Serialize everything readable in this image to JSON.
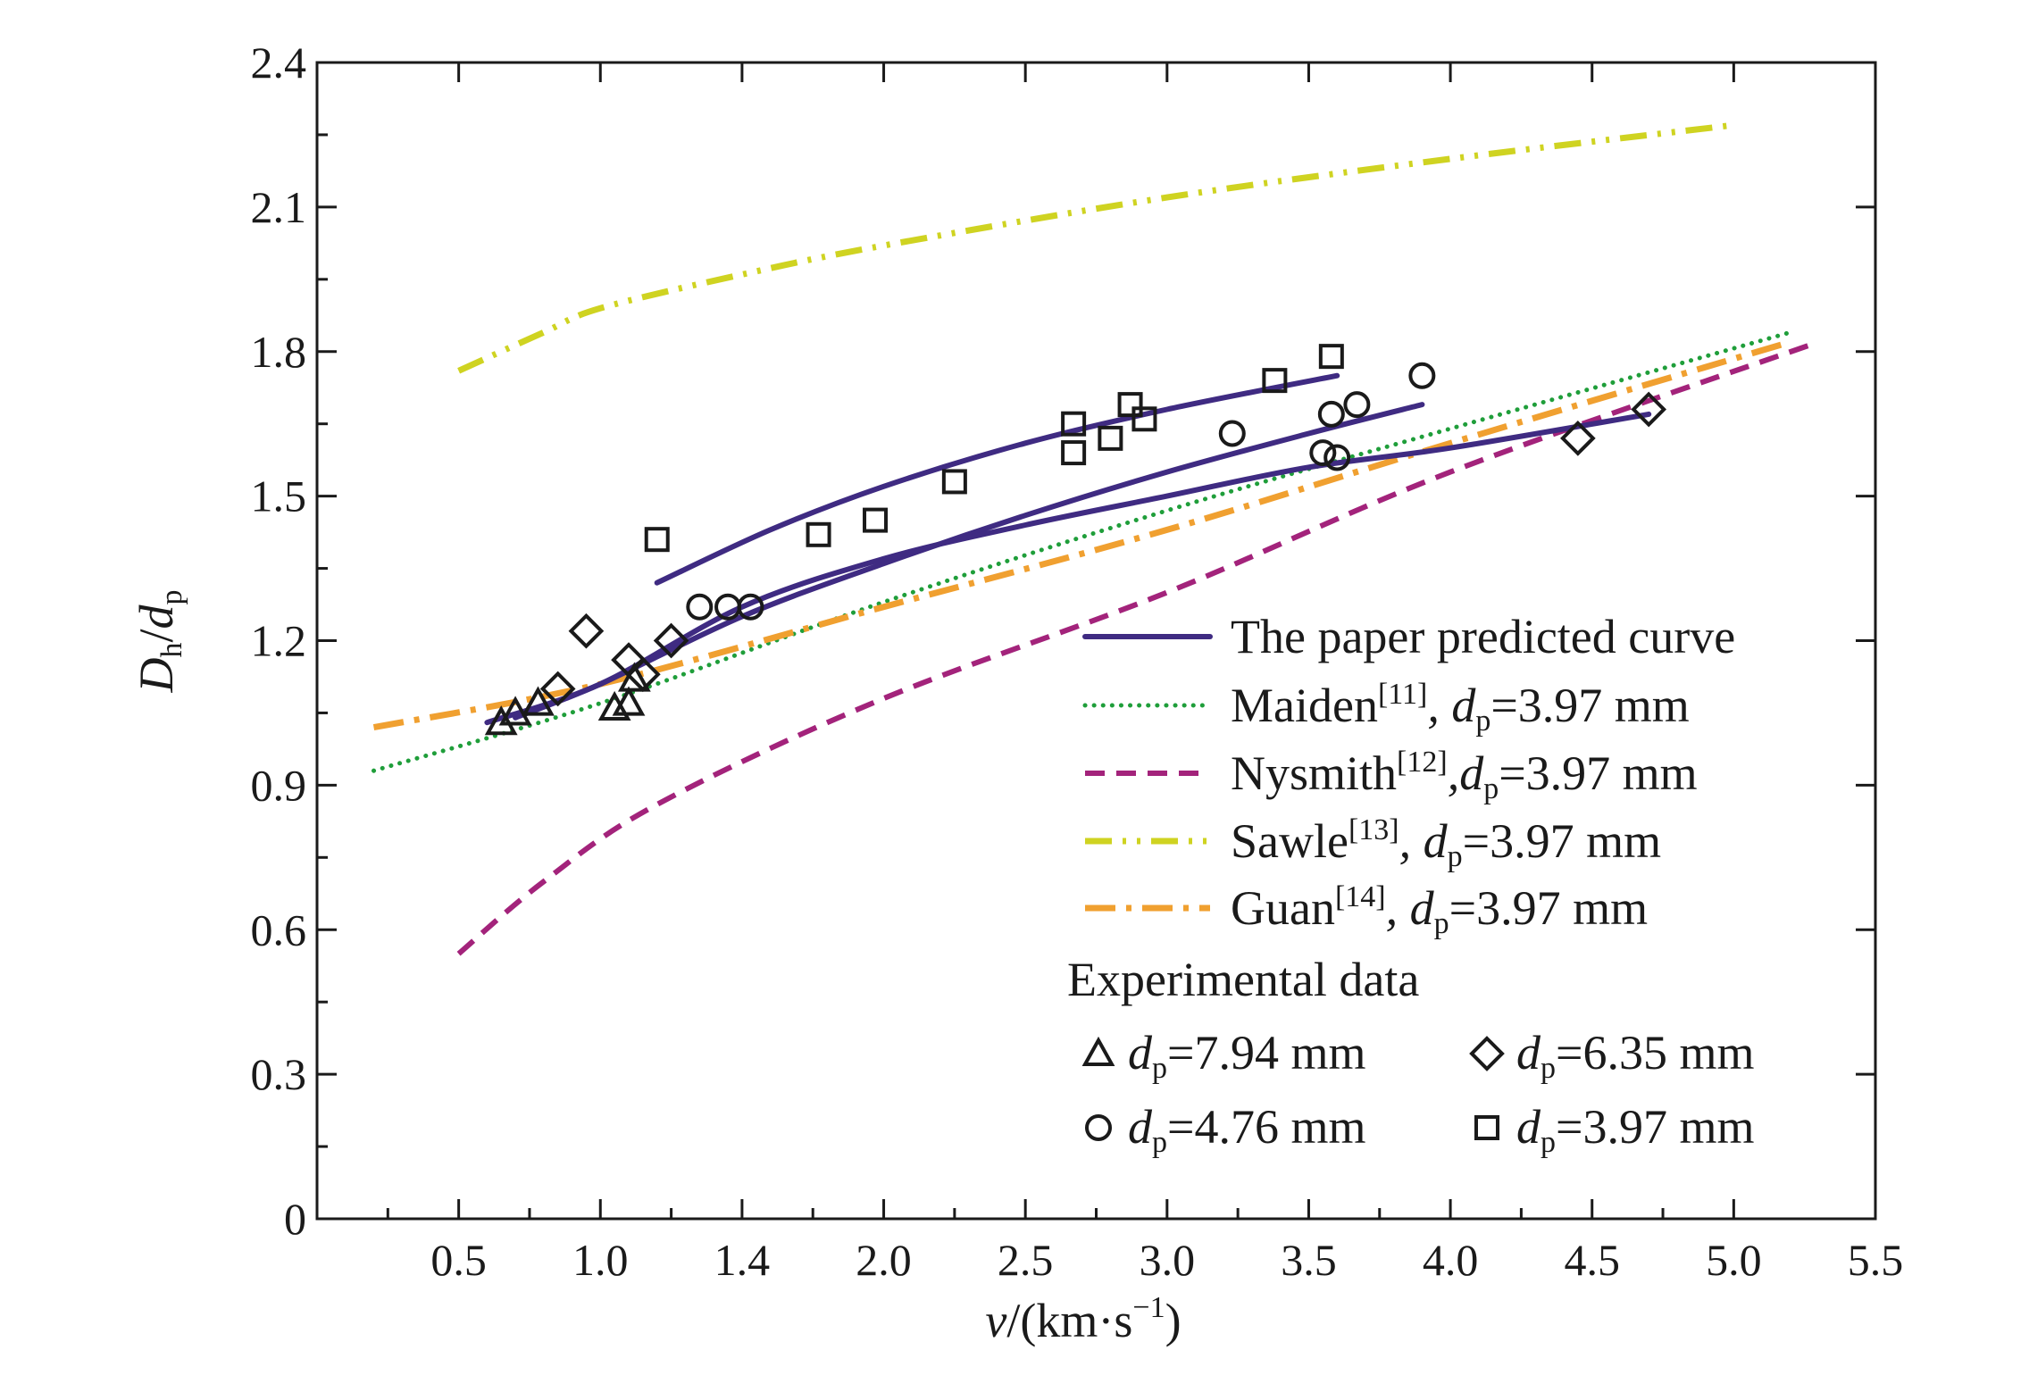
{
  "chart_data": {
    "type": "scatter",
    "xlabel": {
      "var": "v",
      "unit": "/(km·s",
      "exp": "−1",
      "close": ")"
    },
    "ylabel": {
      "D": "D",
      "Dsub": "h",
      "slash": "/",
      "d": "d",
      "dsub": "p"
    },
    "xlim": [
      0.0,
      5.5
    ],
    "ylim": [
      0.0,
      2.4
    ],
    "x_ticks": [
      "0.5",
      "1.0",
      "1.4",
      "2.0",
      "2.5",
      "3.0",
      "3.5",
      "4.0",
      "4.5",
      "5.0",
      "5.5"
    ],
    "y_ticks": [
      "0",
      "0.3",
      "0.6",
      "0.9",
      "1.2",
      "1.5",
      "1.8",
      "2.1",
      "2.4"
    ],
    "grid": false,
    "legend_position": "bottom-right",
    "colors": {
      "predicted": "#3f2b82",
      "maiden": "#1f9e3a",
      "nysmith": "#a3237b",
      "sawle": "#cfd321",
      "guan": "#f0a030",
      "marker": "#1a1a1a"
    },
    "line_series": [
      {
        "key": "predicted",
        "name": "The paper predicted curve",
        "style": "solid",
        "curves": [
          [
            [
              1.2,
              1.32
            ],
            [
              1.6,
              1.43
            ],
            [
              2.0,
              1.52
            ],
            [
              2.5,
              1.61
            ],
            [
              3.0,
              1.68
            ],
            [
              3.6,
              1.75
            ]
          ],
          [
            [
              0.7,
              1.04
            ],
            [
              1.0,
              1.11
            ],
            [
              1.5,
              1.25
            ],
            [
              2.0,
              1.36
            ],
            [
              2.5,
              1.46
            ],
            [
              3.0,
              1.55
            ],
            [
              3.5,
              1.63
            ],
            [
              3.9,
              1.69
            ]
          ],
          [
            [
              0.6,
              1.03
            ],
            [
              1.0,
              1.11
            ],
            [
              1.5,
              1.27
            ],
            [
              2.0,
              1.37
            ],
            [
              2.5,
              1.44
            ],
            [
              3.0,
              1.5
            ],
            [
              3.5,
              1.56
            ],
            [
              4.0,
              1.6
            ],
            [
              4.7,
              1.67
            ]
          ]
        ]
      },
      {
        "key": "maiden",
        "name": "Maiden",
        "ref": "[11]",
        "param": ", d",
        "psub": "p",
        "pval": "=3.97 mm",
        "style": "dotted",
        "curves": [
          [
            [
              0.2,
              0.93
            ],
            [
              1.0,
              1.07
            ],
            [
              2.0,
              1.28
            ],
            [
              3.0,
              1.47
            ],
            [
              4.0,
              1.64
            ],
            [
              5.2,
              1.84
            ]
          ]
        ]
      },
      {
        "key": "nysmith",
        "name": "Nysmith",
        "ref": "[12]",
        "param": ",d",
        "psub": "p",
        "pval": "=3.97 mm",
        "style": "dashed",
        "curves": [
          [
            [
              0.5,
              0.55
            ],
            [
              0.8,
              0.7
            ],
            [
              1.2,
              0.86
            ],
            [
              2.0,
              1.08
            ],
            [
              3.0,
              1.3
            ],
            [
              4.0,
              1.55
            ],
            [
              5.3,
              1.82
            ]
          ]
        ]
      },
      {
        "key": "sawle",
        "name": "Sawle",
        "ref": "[13]",
        "param": ", d",
        "psub": "p",
        "pval": "=3.97 mm",
        "style": "dashdotdot",
        "curves": [
          [
            [
              0.5,
              1.76
            ],
            [
              0.8,
              1.84
            ],
            [
              1.0,
              1.89
            ],
            [
              1.5,
              1.96
            ],
            [
              2.0,
              2.02
            ],
            [
              3.0,
              2.12
            ],
            [
              4.0,
              2.2
            ],
            [
              5.0,
              2.27
            ]
          ]
        ]
      },
      {
        "key": "guan",
        "name": "Guan",
        "ref": "[14]",
        "param": ", d",
        "psub": "p",
        "pval": "=3.97 mm",
        "style": "dashdot",
        "curves": [
          [
            [
              0.2,
              1.02
            ],
            [
              1.0,
              1.11
            ],
            [
              2.0,
              1.27
            ],
            [
              3.0,
              1.43
            ],
            [
              4.0,
              1.61
            ],
            [
              5.2,
              1.82
            ]
          ]
        ]
      }
    ],
    "experimental_title": "Experimental data",
    "markers": [
      {
        "key": "tri",
        "shape": "triangle",
        "param": "d",
        "psub": "p",
        "pval": "=7.94 mm",
        "points": [
          [
            0.65,
            1.03
          ],
          [
            0.7,
            1.05
          ],
          [
            0.78,
            1.07
          ],
          [
            1.05,
            1.06
          ],
          [
            1.1,
            1.07
          ],
          [
            1.12,
            1.12
          ]
        ]
      },
      {
        "key": "dia",
        "shape": "diamond",
        "param": "d",
        "psub": "p",
        "pval": "=6.35 mm",
        "points": [
          [
            0.85,
            1.1
          ],
          [
            0.95,
            1.22
          ],
          [
            1.1,
            1.16
          ],
          [
            1.15,
            1.13
          ],
          [
            1.25,
            1.2
          ],
          [
            4.45,
            1.62
          ],
          [
            4.7,
            1.68
          ]
        ]
      },
      {
        "key": "cir",
        "shape": "circle",
        "param": "d",
        "psub": "p",
        "pval": "=4.76 mm",
        "points": [
          [
            1.35,
            1.27
          ],
          [
            1.45,
            1.27
          ],
          [
            1.53,
            1.27
          ],
          [
            3.23,
            1.63
          ],
          [
            3.55,
            1.59
          ],
          [
            3.58,
            1.67
          ],
          [
            3.6,
            1.58
          ],
          [
            3.67,
            1.69
          ],
          [
            3.9,
            1.75
          ]
        ]
      },
      {
        "key": "sq",
        "shape": "square",
        "param": "d",
        "psub": "p",
        "pval": "=3.97 mm",
        "points": [
          [
            1.2,
            1.41
          ],
          [
            1.77,
            1.42
          ],
          [
            1.97,
            1.45
          ],
          [
            2.25,
            1.53
          ],
          [
            2.67,
            1.65
          ],
          [
            2.67,
            1.59
          ],
          [
            2.8,
            1.62
          ],
          [
            2.87,
            1.69
          ],
          [
            2.92,
            1.66
          ],
          [
            3.38,
            1.74
          ],
          [
            3.58,
            1.79
          ]
        ]
      }
    ]
  }
}
